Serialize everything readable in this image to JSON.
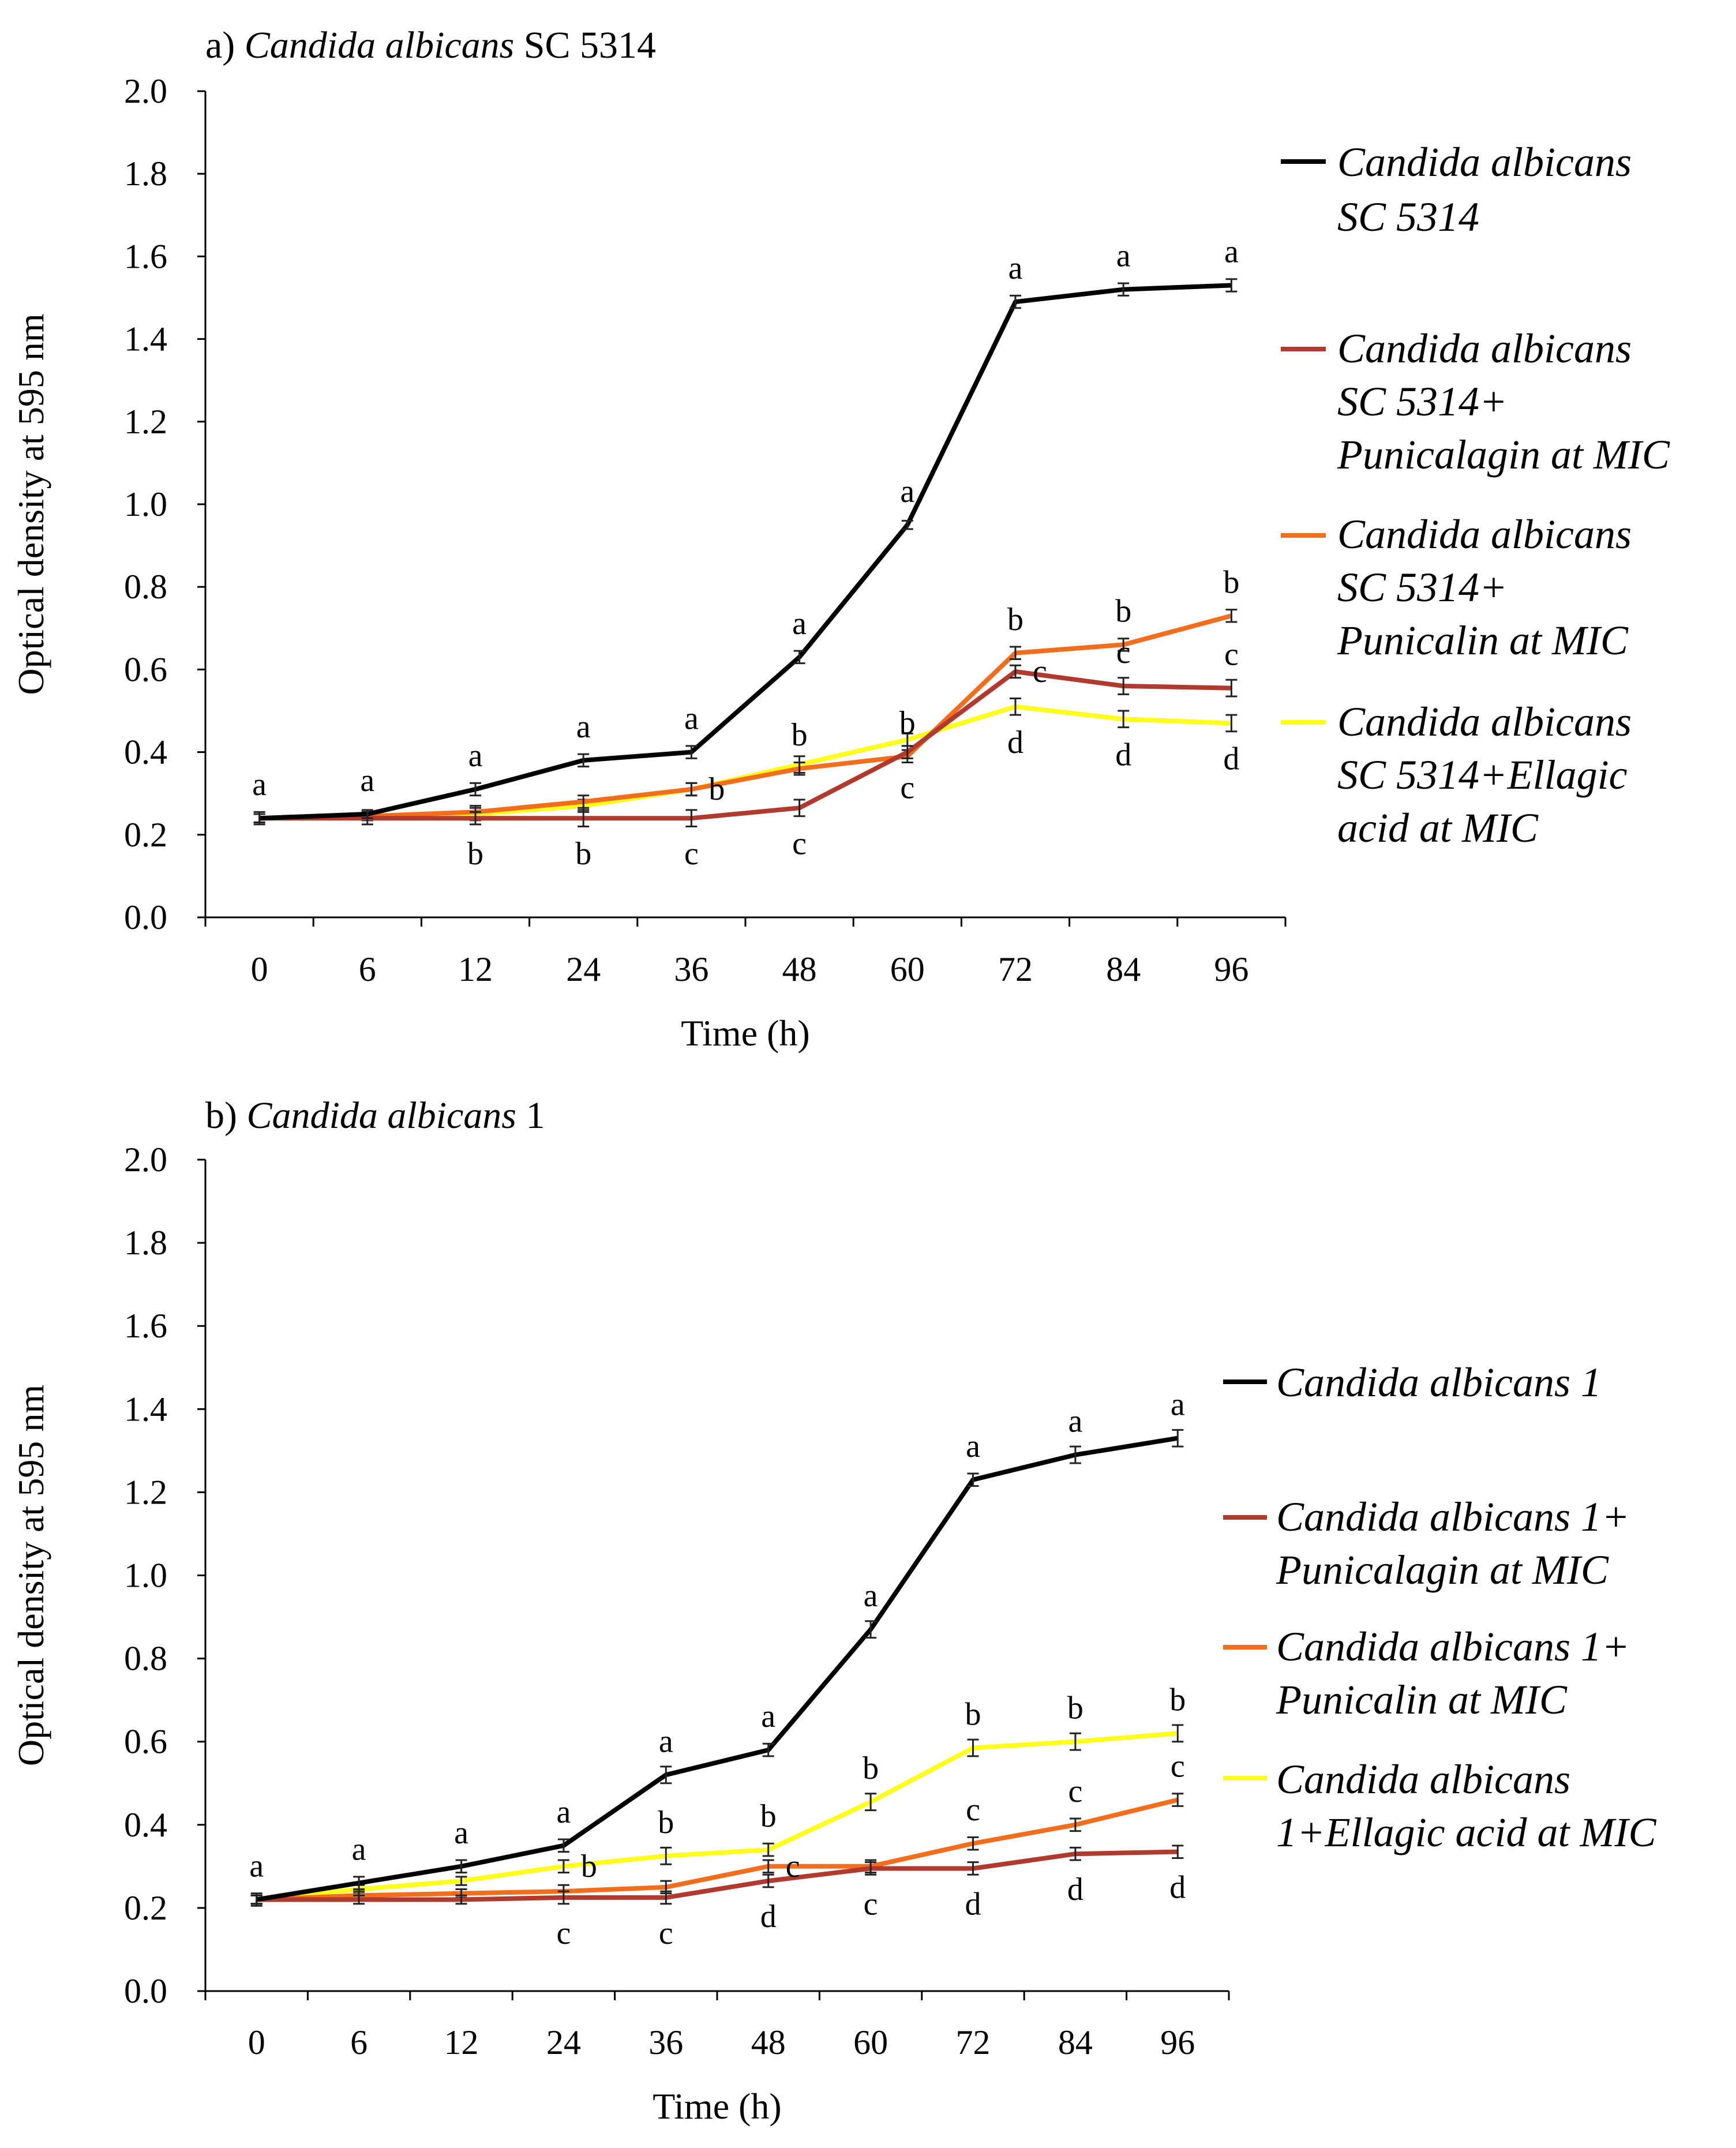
{
  "chart_data": [
    {
      "type": "line",
      "panel_label": "a)",
      "title_species": "Candida albicans",
      "title_strain": "SC 5314",
      "xlabel": "Time (h)",
      "ylabel": "Optical density at 595 nm",
      "categories": [
        "0",
        "6",
        "12",
        "24",
        "36",
        "48",
        "60",
        "72",
        "84",
        "96"
      ],
      "ylim": [
        0,
        2.0
      ],
      "yticks": [
        "0.0",
        "0.2",
        "0.4",
        "0.6",
        "0.8",
        "1.0",
        "1.2",
        "1.4",
        "1.6",
        "1.8",
        "2.0"
      ],
      "grid": false,
      "legend_position": "right",
      "series": [
        {
          "name": "Candida albicans SC 5314",
          "legend_lines": [
            "Candida albicans",
            "SC 5314"
          ],
          "color": "#000000",
          "values": [
            0.24,
            0.25,
            0.31,
            0.38,
            0.4,
            0.63,
            0.95,
            1.49,
            1.52,
            1.53
          ],
          "errors": [
            0.01,
            0.01,
            0.015,
            0.015,
            0.015,
            0.015,
            0.01,
            0.015,
            0.015,
            0.015
          ],
          "letters": [
            "a",
            "a",
            "a",
            "a",
            "a",
            "a",
            "a",
            "a",
            "a",
            "a"
          ],
          "letter_pos": [
            "above",
            "above",
            "above",
            "above",
            "above",
            "above",
            "above",
            "above",
            "above",
            "above"
          ]
        },
        {
          "name": "Candida albicans SC 5314+ Punicalagin at MIC",
          "legend_lines": [
            "Candida albicans",
            "SC 5314+",
            "Punicalagin at MIC"
          ],
          "color": "#b03a2e",
          "values": [
            0.24,
            0.24,
            0.24,
            0.24,
            0.24,
            0.265,
            0.4,
            0.595,
            0.56,
            0.555
          ],
          "errors": [
            0.015,
            0.015,
            0.015,
            0.02,
            0.02,
            0.02,
            0.015,
            0.015,
            0.02,
            0.02
          ],
          "letters": [
            "",
            "",
            "b",
            "b",
            "c",
            "c",
            "c",
            "c",
            "c",
            "c"
          ],
          "letter_pos": [
            "",
            "",
            "below",
            "below",
            "below",
            "below",
            "below",
            "right",
            "above",
            "above"
          ]
        },
        {
          "name": "Candida albicans SC 5314+ Punicalin at MIC",
          "legend_lines": [
            "Candida albicans",
            "SC 5314+",
            "Punicalin at MIC"
          ],
          "color": "#f36e1c",
          "values": [
            0.24,
            0.245,
            0.255,
            0.28,
            0.31,
            0.36,
            0.39,
            0.64,
            0.66,
            0.73
          ],
          "errors": [
            0.01,
            0.01,
            0.015,
            0.015,
            0.015,
            0.015,
            0.015,
            0.015,
            0.015,
            0.015
          ],
          "letters": [
            "",
            "",
            "",
            "",
            "b",
            "b",
            "b",
            "b",
            "b",
            "b"
          ],
          "letter_pos": [
            "",
            "",
            "",
            "",
            "right",
            "above",
            "above",
            "above",
            "above",
            "above"
          ]
        },
        {
          "name": "Candida albicans SC 5314+Ellagic acid at MIC",
          "legend_lines": [
            "Candida albicans",
            "SC 5314+Ellagic",
            "acid at MIC"
          ],
          "color": "#ffff1a",
          "values": [
            0.24,
            0.245,
            0.25,
            0.27,
            0.31,
            0.37,
            0.43,
            0.51,
            0.48,
            0.47
          ],
          "errors": [
            0.01,
            0.01,
            0.015,
            0.015,
            0.015,
            0.02,
            0.015,
            0.02,
            0.02,
            0.02
          ],
          "letters": [
            "",
            "",
            "",
            "",
            "",
            "",
            "",
            "d",
            "d",
            "d"
          ],
          "letter_pos": [
            "",
            "",
            "",
            "",
            "",
            "",
            "",
            "below",
            "below",
            "below"
          ]
        }
      ]
    },
    {
      "type": "line",
      "panel_label": "b)",
      "title_species": "Candida albicans",
      "title_strain": "1",
      "xlabel": "Time (h)",
      "ylabel": "Optical density at 595 nm",
      "categories": [
        "0",
        "6",
        "12",
        "24",
        "36",
        "48",
        "60",
        "72",
        "84",
        "96"
      ],
      "ylim": [
        0,
        2.0
      ],
      "yticks": [
        "0.0",
        "0.2",
        "0.4",
        "0.6",
        "0.8",
        "1.0",
        "1.2",
        "1.4",
        "1.6",
        "1.8",
        "2.0"
      ],
      "grid": false,
      "legend_position": "right",
      "series": [
        {
          "name": "Candida albicans 1",
          "legend_lines": [
            "Candida albicans 1"
          ],
          "color": "#000000",
          "values": [
            0.22,
            0.26,
            0.3,
            0.35,
            0.52,
            0.58,
            0.87,
            1.23,
            1.29,
            1.33
          ],
          "errors": [
            0.015,
            0.015,
            0.015,
            0.015,
            0.02,
            0.015,
            0.02,
            0.015,
            0.02,
            0.02
          ],
          "letters": [
            "a",
            "a",
            "a",
            "a",
            "a",
            "a",
            "a",
            "a",
            "a",
            "a"
          ],
          "letter_pos": [
            "above",
            "above",
            "above",
            "above",
            "above",
            "above",
            "above",
            "above",
            "above",
            "above"
          ]
        },
        {
          "name": "Candida albicans 1+ Punicalagin at MIC",
          "legend_lines": [
            "Candida albicans 1+",
            "Punicalagin at MIC"
          ],
          "color": "#b03a2e",
          "values": [
            0.22,
            0.22,
            0.22,
            0.225,
            0.225,
            0.265,
            0.295,
            0.295,
            0.33,
            0.335
          ],
          "errors": [
            0.01,
            0.01,
            0.01,
            0.015,
            0.015,
            0.015,
            0.015,
            0.015,
            0.015,
            0.015
          ],
          "letters": [
            "",
            "",
            "",
            "c",
            "c",
            "d",
            "c",
            "d",
            "d",
            "d"
          ],
          "letter_pos": [
            "",
            "",
            "",
            "below",
            "below",
            "below",
            "below",
            "below",
            "below",
            "below"
          ]
        },
        {
          "name": "Candida albicans 1+ Punicalin at MIC",
          "legend_lines": [
            "Candida albicans 1+",
            "Punicalin at MIC"
          ],
          "color": "#f36e1c",
          "values": [
            0.22,
            0.23,
            0.235,
            0.24,
            0.25,
            0.3,
            0.3,
            0.355,
            0.4,
            0.46
          ],
          "errors": [
            0.01,
            0.01,
            0.01,
            0.015,
            0.015,
            0.015,
            0.015,
            0.015,
            0.015,
            0.015
          ],
          "letters": [
            "",
            "",
            "",
            "",
            "",
            "c",
            "",
            "c",
            "c",
            "c"
          ],
          "letter_pos": [
            "",
            "",
            "",
            "",
            "",
            "right",
            "",
            "above",
            "above",
            "above"
          ]
        },
        {
          "name": "Candida albicans 1+Ellagic acid at MIC",
          "legend_lines": [
            "Candida albicans",
            "1+Ellagic acid at MIC"
          ],
          "color": "#ffff1a",
          "values": [
            0.22,
            0.245,
            0.265,
            0.3,
            0.325,
            0.34,
            0.455,
            0.585,
            0.6,
            0.62
          ],
          "errors": [
            0.01,
            0.01,
            0.01,
            0.015,
            0.02,
            0.015,
            0.02,
            0.02,
            0.02,
            0.02
          ],
          "letters": [
            "",
            "",
            "",
            "b",
            "b",
            "b",
            "b",
            "b",
            "b",
            "b"
          ],
          "letter_pos": [
            "",
            "",
            "",
            "right",
            "above",
            "above",
            "above",
            "above",
            "above",
            "above"
          ]
        }
      ]
    }
  ]
}
